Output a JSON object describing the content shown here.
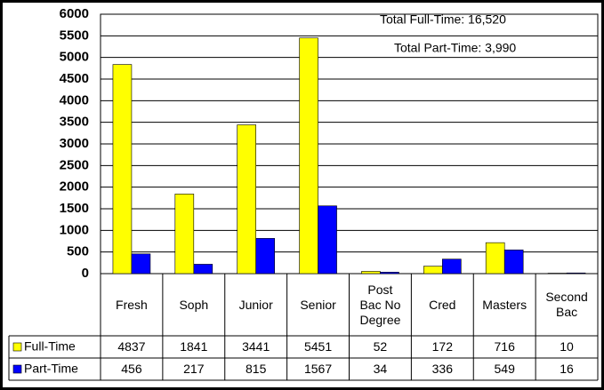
{
  "chart_data": {
    "type": "bar",
    "categories": [
      "Fresh",
      "Soph",
      "Junior",
      "Senior",
      "Post Bac No Degree",
      "Cred",
      "Masters",
      "Second Bac"
    ],
    "series": [
      {
        "name": "Full-Time",
        "color": "#ffff00",
        "values": [
          4837,
          1841,
          3441,
          5451,
          52,
          172,
          716,
          10
        ]
      },
      {
        "name": "Part-Time",
        "color": "#0000ff",
        "values": [
          456,
          217,
          815,
          1567,
          34,
          336,
          549,
          16
        ]
      }
    ],
    "ylim": [
      0,
      6000
    ],
    "yticks": [
      0,
      500,
      1000,
      1500,
      2000,
      2500,
      3000,
      3500,
      4000,
      4500,
      5000,
      5500,
      6000
    ],
    "grid": true,
    "annotations": [
      "Total Full-Time: 16,520",
      "Total Part-Time: 3,990"
    ]
  }
}
